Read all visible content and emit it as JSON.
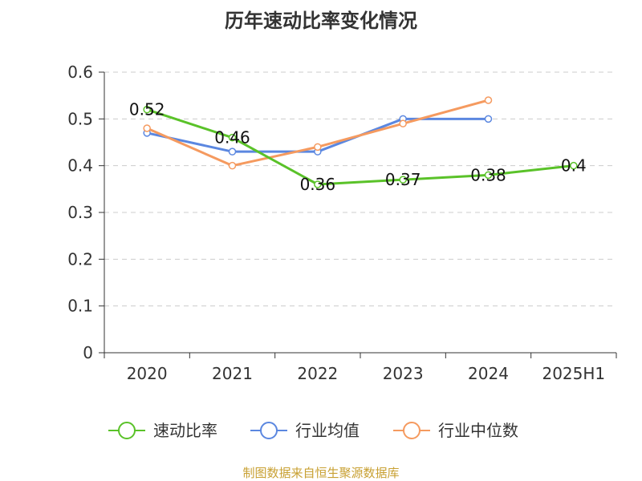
{
  "chart_data": {
    "type": "line",
    "title": "历年速动比率变化情况",
    "categories": [
      "2020",
      "2021",
      "2022",
      "2023",
      "2024",
      "2025H1"
    ],
    "ylim": [
      0,
      0.6
    ],
    "yticks": [
      "0",
      "0.1",
      "0.2",
      "0.3",
      "0.4",
      "0.5",
      "0.6"
    ],
    "ytick_values": [
      0,
      0.1,
      0.2,
      0.3,
      0.4,
      0.5,
      0.6
    ],
    "grid": true,
    "legend_position": "bottom",
    "series": [
      {
        "name": "速动比率",
        "color": "#5ac229",
        "values": [
          0.52,
          0.46,
          0.36,
          0.37,
          0.38,
          0.4
        ],
        "labels": [
          "0.52",
          "0.46",
          "0.36",
          "0.37",
          "0.38",
          "0.4"
        ]
      },
      {
        "name": "行业均值",
        "color": "#5b87e0",
        "values": [
          0.47,
          0.43,
          0.43,
          0.5,
          0.5,
          null
        ],
        "labels": []
      },
      {
        "name": "行业中位数",
        "color": "#f59a5f",
        "values": [
          0.48,
          0.4,
          0.44,
          0.49,
          0.54,
          null
        ],
        "labels": []
      }
    ],
    "source": "制图数据来自恒生聚源数据库"
  }
}
